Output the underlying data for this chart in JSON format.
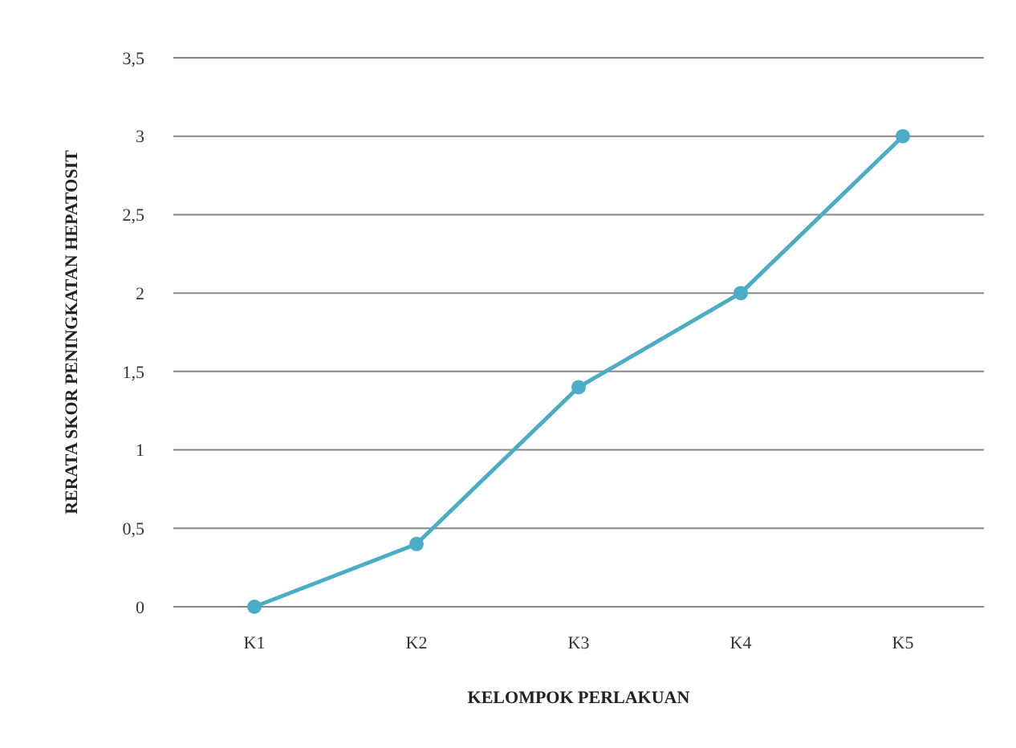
{
  "chart_data": {
    "type": "line",
    "xlabel": "KELOMPOK PERLAKUAN",
    "ylabel": "RERATA SKOR PENINGKATAN HEPATOSIT",
    "categories": [
      "K1",
      "K2",
      "K3",
      "K4",
      "K5"
    ],
    "series": [
      {
        "color": "#4bacc6",
        "values": [
          0,
          0.4,
          1.4,
          2,
          3
        ]
      }
    ],
    "ylim": [
      0,
      3.5
    ],
    "yticks": [
      0,
      {
        "value": 0.5,
        "label": "0,5"
      },
      1,
      {
        "value": 1.5,
        "label": "1,5"
      },
      2,
      {
        "value": 2.5,
        "label": "2,5"
      },
      3,
      {
        "value": 3.5,
        "label": "3,5"
      }
    ],
    "grid": "y",
    "marker": "circle",
    "line_style": "solid"
  }
}
